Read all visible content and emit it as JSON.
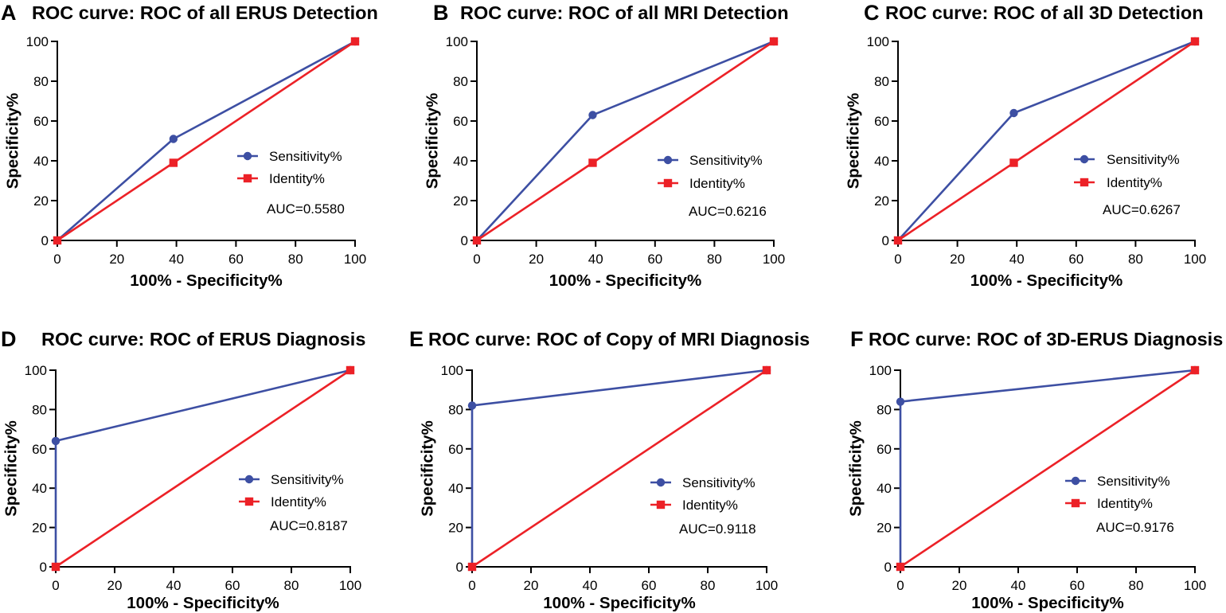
{
  "chart_data": [
    {
      "panel": "A",
      "type": "line",
      "title": "ROC curve: ROC of all ERUS Detection",
      "xlabel": "100% - Specificity%",
      "ylabel": "Specificity%",
      "xlim": [
        0,
        100
      ],
      "ylim": [
        0,
        100
      ],
      "xticks": [
        0,
        20,
        40,
        60,
        80,
        100
      ],
      "yticks": [
        0,
        20,
        40,
        60,
        80,
        100
      ],
      "grid": false,
      "legend": "right",
      "series": [
        {
          "name": "Sensitivity%",
          "x": [
            0,
            39,
            100
          ],
          "y": [
            0,
            51,
            100
          ],
          "color": "#3d4fa3"
        },
        {
          "name": "Identity%",
          "x": [
            0,
            39,
            100
          ],
          "y": [
            0,
            39,
            100
          ],
          "color": "#ec2127"
        }
      ],
      "annotation": "AUC=0.5580"
    },
    {
      "panel": "B",
      "type": "line",
      "title": "ROC curve: ROC of all MRI Detection",
      "xlabel": "100% - Specificity%",
      "ylabel": "Specificity%",
      "xlim": [
        0,
        100
      ],
      "ylim": [
        0,
        100
      ],
      "xticks": [
        0,
        20,
        40,
        60,
        80,
        100
      ],
      "yticks": [
        0,
        20,
        40,
        60,
        80,
        100
      ],
      "grid": false,
      "legend": "right",
      "series": [
        {
          "name": "Sensitivity%",
          "x": [
            0,
            39,
            100
          ],
          "y": [
            0,
            63,
            100
          ],
          "color": "#3d4fa3"
        },
        {
          "name": "Identity%",
          "x": [
            0,
            39,
            100
          ],
          "y": [
            0,
            39,
            100
          ],
          "color": "#ec2127"
        }
      ],
      "annotation": "AUC=0.6216"
    },
    {
      "panel": "C",
      "type": "line",
      "title": "ROC curve: ROC of all 3D Detection",
      "xlabel": "100% - Specificity%",
      "ylabel": "Specificity%",
      "xlim": [
        0,
        100
      ],
      "ylim": [
        0,
        100
      ],
      "xticks": [
        0,
        20,
        40,
        60,
        80,
        100
      ],
      "yticks": [
        0,
        20,
        40,
        60,
        80,
        100
      ],
      "grid": false,
      "legend": "right",
      "series": [
        {
          "name": "Sensitivity%",
          "x": [
            0,
            39,
            100
          ],
          "y": [
            0,
            64,
            100
          ],
          "color": "#3d4fa3"
        },
        {
          "name": "Identity%",
          "x": [
            0,
            39,
            100
          ],
          "y": [
            0,
            39,
            100
          ],
          "color": "#ec2127"
        }
      ],
      "annotation": "AUC=0.6267"
    },
    {
      "panel": "D",
      "type": "line",
      "title": "ROC curve: ROC of ERUS Diagnosis",
      "xlabel": "100% - Specificity%",
      "ylabel": "Specificity%",
      "xlim": [
        0,
        100
      ],
      "ylim": [
        0,
        100
      ],
      "xticks": [
        0,
        20,
        40,
        60,
        80,
        100
      ],
      "yticks": [
        0,
        20,
        40,
        60,
        80,
        100
      ],
      "grid": false,
      "legend": "right",
      "series": [
        {
          "name": "Sensitivity%",
          "x": [
            0,
            0,
            100
          ],
          "y": [
            0,
            64,
            100
          ],
          "color": "#3d4fa3"
        },
        {
          "name": "Identity%",
          "x": [
            0,
            100
          ],
          "y": [
            0,
            100
          ],
          "color": "#ec2127"
        }
      ],
      "annotation": "AUC=0.8187"
    },
    {
      "panel": "E",
      "type": "line",
      "title": "ROC curve: ROC of Copy of MRI Diagnosis",
      "xlabel": "100% - Specificity%",
      "ylabel": "Specificity%",
      "xlim": [
        0,
        100
      ],
      "ylim": [
        0,
        100
      ],
      "xticks": [
        0,
        20,
        40,
        60,
        80,
        100
      ],
      "yticks": [
        0,
        20,
        40,
        60,
        80,
        100
      ],
      "grid": false,
      "legend": "right",
      "series": [
        {
          "name": "Sensitivity%",
          "x": [
            0,
            0,
            100
          ],
          "y": [
            0,
            82,
            100
          ],
          "color": "#3d4fa3"
        },
        {
          "name": "Identity%",
          "x": [
            0,
            100
          ],
          "y": [
            0,
            100
          ],
          "color": "#ec2127"
        }
      ],
      "annotation": "AUC=0.9118"
    },
    {
      "panel": "F",
      "type": "line",
      "title": "ROC curve: ROC of 3D-ERUS Diagnosis",
      "xlabel": "100% - Specificity%",
      "ylabel": "Specificity%",
      "xlim": [
        0,
        100
      ],
      "ylim": [
        0,
        100
      ],
      "xticks": [
        0,
        20,
        40,
        60,
        80,
        100
      ],
      "yticks": [
        0,
        20,
        40,
        60,
        80,
        100
      ],
      "grid": false,
      "legend": "right",
      "series": [
        {
          "name": "Sensitivity%",
          "x": [
            0,
            0,
            100
          ],
          "y": [
            0,
            84,
            100
          ],
          "color": "#3d4fa3"
        },
        {
          "name": "Identity%",
          "x": [
            0,
            100
          ],
          "y": [
            0,
            100
          ],
          "color": "#ec2127"
        }
      ],
      "annotation": "AUC=0.9176"
    }
  ]
}
